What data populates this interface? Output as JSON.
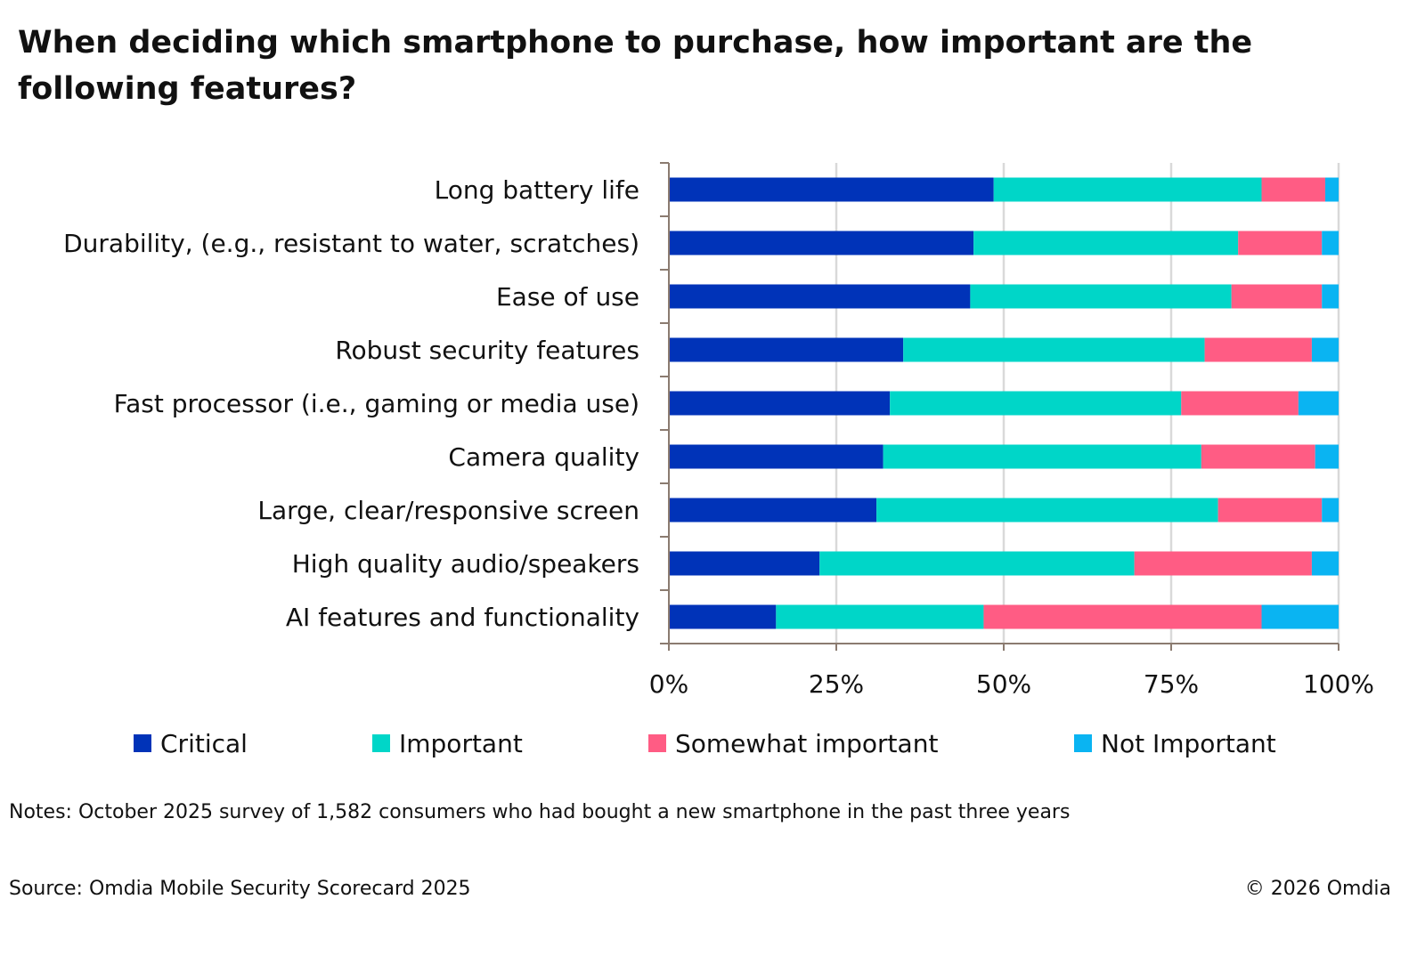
{
  "chart_data": {
    "type": "bar",
    "orientation": "horizontal",
    "stacked": "percent",
    "title": "When deciding which smartphone to purchase, how important are the following features?",
    "categories": [
      "Long battery life",
      "Durability, (e.g., resistant to water, scratches)",
      "Ease of use",
      "Robust security features",
      "Fast processor (i.e., gaming or media use)",
      "Camera quality",
      "Large, clear/responsive screen",
      "High quality audio/speakers",
      "AI features and functionality"
    ],
    "series": [
      {
        "name": "Critical",
        "color": "#0033b8",
        "values": [
          48.5,
          45.5,
          45,
          35,
          33,
          32,
          31,
          22.5,
          16
        ]
      },
      {
        "name": "Important",
        "color": "#00d6c8",
        "values": [
          40,
          39.5,
          39,
          45,
          43.5,
          47.5,
          51,
          47,
          31
        ]
      },
      {
        "name": "Somewhat important",
        "color": "#ff5c84",
        "values": [
          9.5,
          12.5,
          13.5,
          16,
          17.5,
          17,
          15.5,
          26.5,
          41.5
        ]
      },
      {
        "name": "Not Important",
        "color": "#0ab4f2",
        "values": [
          2,
          2.5,
          2.5,
          4,
          6,
          3.5,
          2.5,
          4,
          11.5
        ]
      }
    ],
    "x_ticks": [
      "0%",
      "25%",
      "50%",
      "75%",
      "100%"
    ],
    "xlim": [
      0,
      100
    ],
    "grid": true,
    "legend_position": "bottom"
  },
  "notes": "Notes: October 2025 survey of 1,582 consumers who had bought a new smartphone in the past three years",
  "source": "Source: Omdia Mobile Security Scorecard 2025",
  "copyright": "© 2026 Omdia",
  "colors": {
    "axis": "#8b7b70",
    "grid": "#d9d9d9"
  }
}
